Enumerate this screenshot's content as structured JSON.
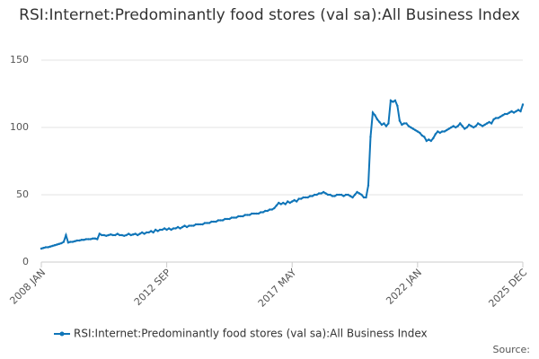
{
  "chart_data": {
    "type": "line",
    "title": "RSI:Internet:Predominantly food stores (val sa):All Business Index",
    "source": "Source:",
    "categories": [
      "2008 JAN",
      null,
      null,
      null,
      null,
      null,
      null,
      null,
      null,
      null,
      null,
      null,
      null,
      null,
      null,
      null,
      null,
      null,
      null,
      null,
      null,
      null,
      null,
      null,
      null,
      null,
      null,
      null,
      null,
      null,
      null,
      null,
      null,
      null,
      null,
      null,
      null,
      null,
      null,
      null,
      null,
      null,
      null,
      null,
      null,
      null,
      null,
      null,
      null,
      null,
      null,
      null,
      null,
      null,
      null,
      null,
      "2012 SEP",
      null,
      null,
      null,
      null,
      null,
      null,
      null,
      null,
      null,
      null,
      null,
      null,
      null,
      null,
      null,
      null,
      null,
      null,
      null,
      null,
      null,
      null,
      null,
      null,
      null,
      null,
      null,
      null,
      null,
      null,
      null,
      null,
      null,
      null,
      null,
      null,
      null,
      null,
      null,
      null,
      null,
      null,
      null,
      null,
      null,
      null,
      null,
      null,
      null,
      null,
      null,
      null,
      null,
      null,
      null,
      "2017 MAY",
      null,
      null,
      null,
      null,
      null,
      null,
      null,
      null,
      null,
      null,
      null,
      null,
      null,
      null,
      null,
      null,
      null,
      null,
      null,
      null,
      null,
      null,
      null,
      null,
      null,
      null,
      null,
      null,
      null,
      null,
      null,
      null,
      null,
      null,
      null,
      null,
      null,
      null,
      null,
      null,
      null,
      null,
      null,
      null,
      null,
      null,
      null,
      null,
      null,
      null,
      null,
      null,
      null,
      null,
      null,
      "2022 JAN",
      null,
      null,
      null,
      null,
      null,
      null,
      null,
      null,
      null,
      null,
      null,
      null,
      null,
      null,
      null,
      null,
      null,
      null,
      null,
      null,
      null,
      null,
      null,
      null,
      null,
      null,
      null,
      null,
      null,
      null,
      null,
      null,
      null,
      null,
      null,
      null,
      null,
      null,
      null,
      null,
      null,
      null,
      null,
      null,
      null,
      null,
      "2025 DEC"
    ],
    "series": [
      {
        "name": "RSI:Internet:Predominantly food stores (val sa):All Business Index",
        "color": "#0f75b8",
        "values": [
          10,
          10.5,
          11,
          11,
          11.5,
          12,
          12.5,
          13,
          13.5,
          14,
          15,
          20,
          14.5,
          15,
          15,
          15.5,
          16,
          16,
          16.5,
          16.5,
          17,
          17,
          17,
          17.5,
          17.5,
          17,
          21,
          20,
          20,
          19.5,
          20,
          20.5,
          20,
          20,
          21,
          20,
          20,
          19.5,
          20,
          21,
          20,
          20.5,
          21,
          20,
          21,
          22,
          21,
          22,
          22,
          23,
          22,
          24,
          23,
          24,
          24,
          25,
          24,
          25,
          24,
          25,
          25,
          26,
          25,
          26,
          27,
          26,
          27,
          27,
          27,
          28,
          28,
          28,
          28,
          29,
          29,
          29,
          30,
          30,
          30,
          31,
          31,
          31,
          32,
          32,
          32,
          33,
          33,
          33,
          34,
          34,
          34,
          35,
          35,
          35,
          36,
          36,
          36,
          36,
          37,
          37,
          38,
          38,
          39,
          39,
          40,
          42,
          44,
          43,
          44,
          43,
          45,
          44,
          45,
          46,
          45,
          47,
          47,
          48,
          48,
          48,
          49,
          49,
          50,
          50,
          51,
          51,
          52,
          51,
          50,
          50,
          49,
          49,
          50,
          50,
          50,
          49,
          50,
          50,
          49,
          48,
          50,
          52,
          51,
          50,
          48,
          48,
          57,
          93,
          111,
          109,
          106,
          104,
          102,
          103,
          101,
          103,
          120,
          119,
          120,
          116,
          105,
          102,
          103,
          103,
          101,
          100,
          99,
          98,
          97,
          96,
          94,
          93,
          90,
          91,
          90,
          92,
          95,
          97,
          96,
          97,
          97,
          98,
          99,
          100,
          101,
          100,
          101,
          103,
          101,
          99,
          100,
          102,
          101,
          100,
          101,
          103,
          102,
          101,
          102,
          103,
          104,
          103,
          106,
          107,
          107,
          108,
          109,
          110,
          110,
          111,
          112,
          111,
          112,
          113,
          112,
          117
        ]
      }
    ],
    "ylim": [
      0,
      150
    ],
    "yticks": [
      0,
      50,
      100,
      150
    ],
    "grid": true
  }
}
